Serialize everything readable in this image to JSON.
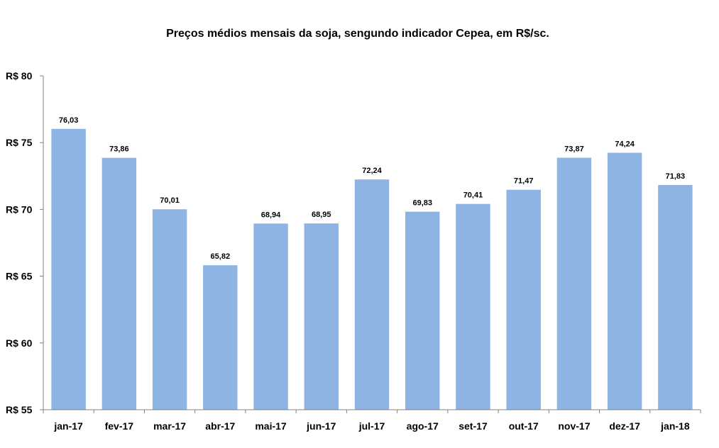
{
  "chart_data": {
    "type": "bar",
    "title": "Preços médios mensais da soja, sengundo indicador Cepea, em R$/sc.",
    "xlabel": "",
    "ylabel": "",
    "categories": [
      "jan-17",
      "fev-17",
      "mar-17",
      "abr-17",
      "mai-17",
      "jun-17",
      "jul-17",
      "ago-17",
      "set-17",
      "out-17",
      "nov-17",
      "dez-17",
      "jan-18"
    ],
    "values": [
      76.03,
      73.86,
      70.01,
      65.82,
      68.94,
      68.95,
      72.24,
      69.83,
      70.41,
      71.47,
      73.87,
      74.24,
      71.83
    ],
    "data_labels": [
      "76,03",
      "73,86",
      "70,01",
      "65,82",
      "68,94",
      "68,95",
      "72,24",
      "69,83",
      "70,41",
      "71,47",
      "73,87",
      "74,24",
      "71,83"
    ],
    "ylim": [
      55,
      80
    ],
    "yticks": [
      55,
      60,
      65,
      70,
      75,
      80
    ],
    "ytick_labels": [
      "R$ 55",
      "R$ 60",
      "R$ 65",
      "R$ 70",
      "R$ 75",
      "R$ 80"
    ],
    "grid": false,
    "legend": "none",
    "colors": {
      "bar": "#8EB4E3",
      "axis": "#808080",
      "text": "#000000"
    }
  }
}
